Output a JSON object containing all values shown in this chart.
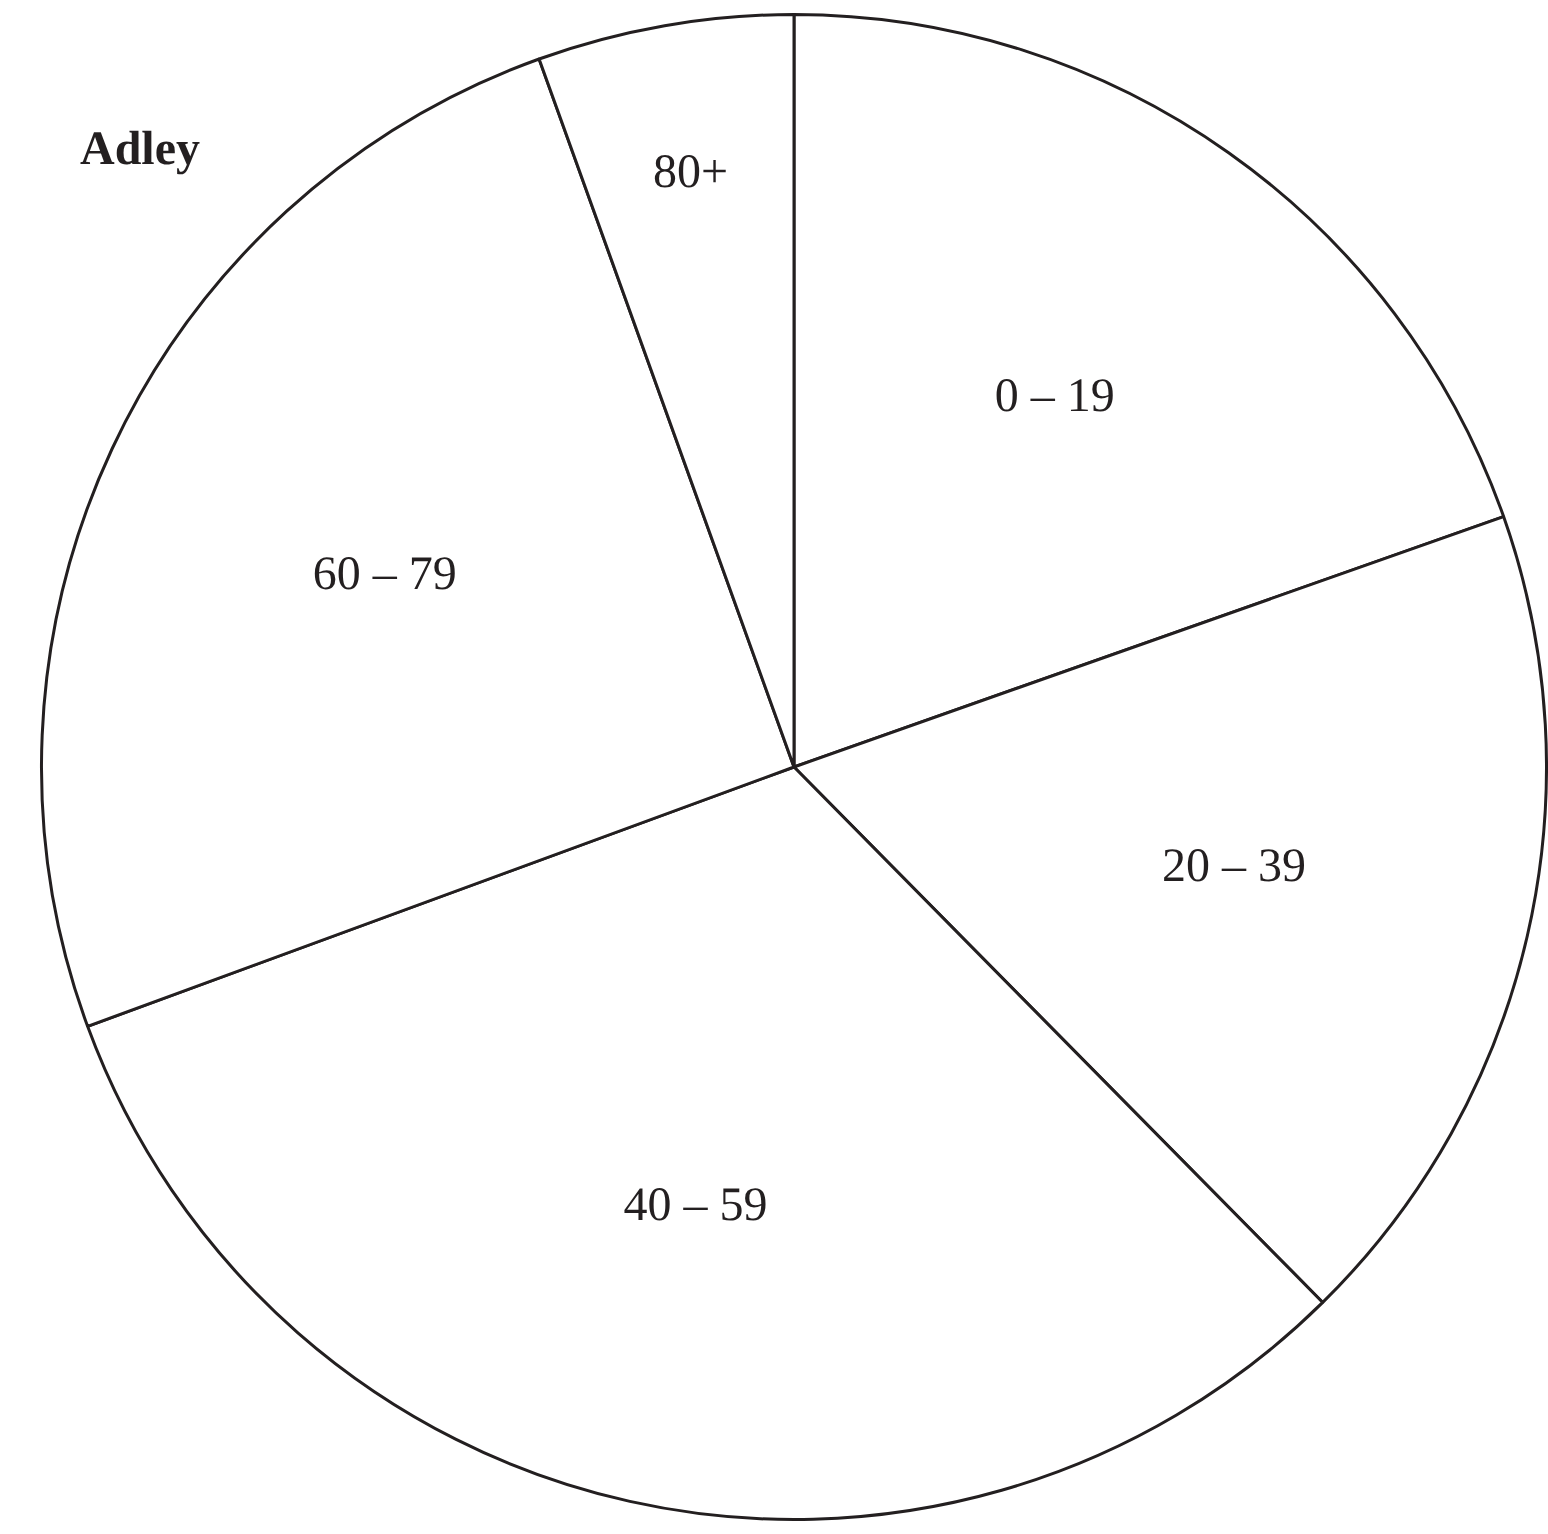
{
  "chart_data": {
    "type": "pie",
    "title": "Adley",
    "categories": [
      "0 – 19",
      "20 – 39",
      "40 – 59",
      "60 – 79",
      "80+"
    ],
    "values": [
      19.6,
      18.0,
      31.8,
      25.1,
      5.5
    ],
    "colors": [
      "#ffffff",
      "#ffffff",
      "#ffffff",
      "#ffffff",
      "#ffffff"
    ],
    "legend": false
  }
}
